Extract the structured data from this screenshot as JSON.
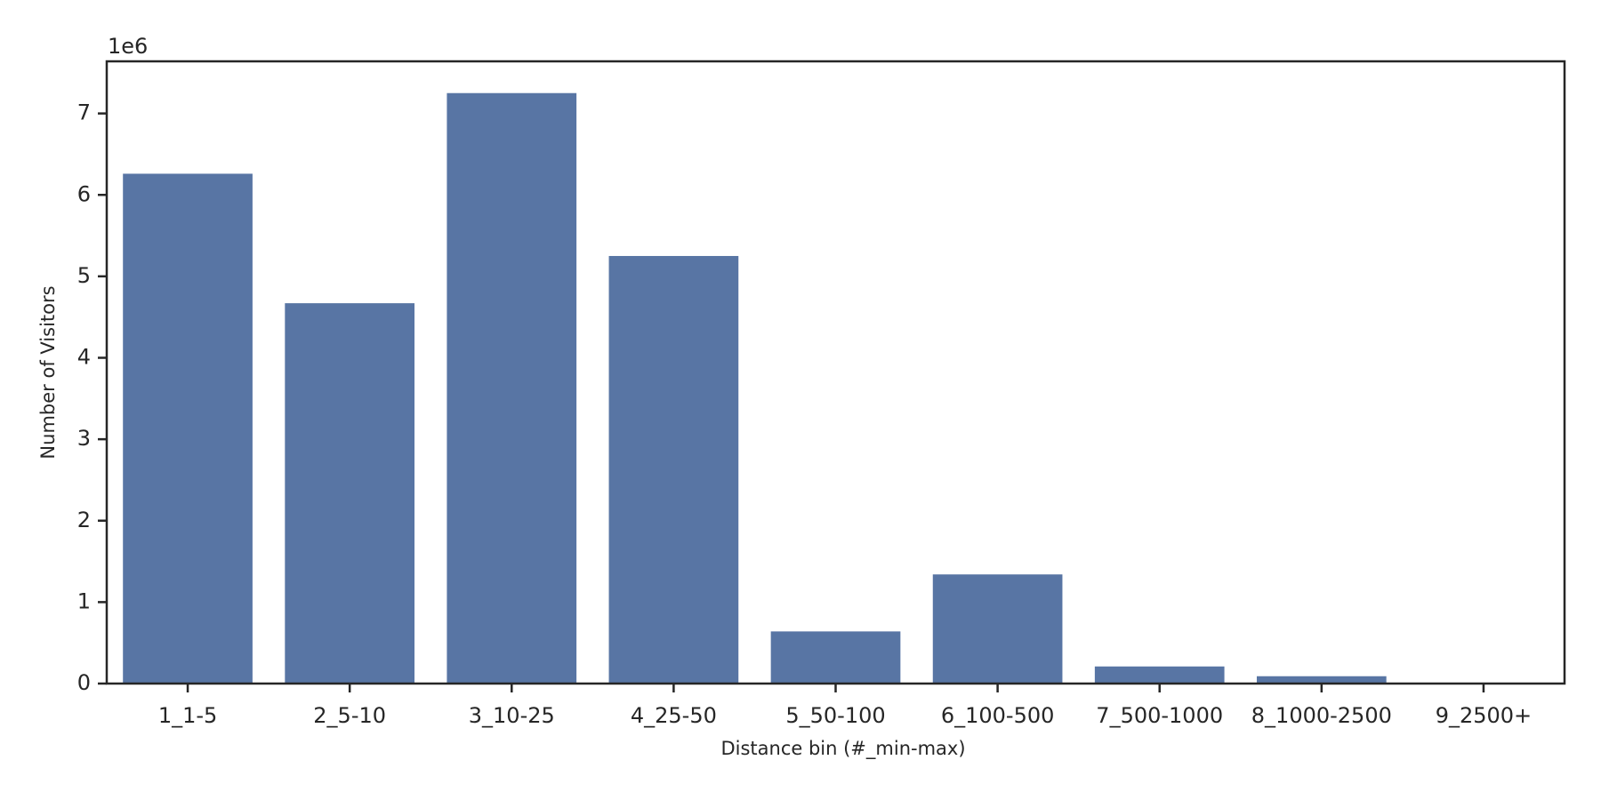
{
  "chart_data": {
    "type": "bar",
    "x_label": "Distance bin (#_min-max)",
    "y_label": "Number of Visitors",
    "y_offset_label": "1e6",
    "categories": [
      "1_1-5",
      "2_5-10",
      "3_10-25",
      "4_25-50",
      "5_50-100",
      "6_100-500",
      "7_500-1000",
      "8_1000-2500",
      "9_2500+"
    ],
    "values": [
      6.26,
      4.67,
      7.25,
      5.25,
      0.64,
      1.34,
      0.21,
      0.09,
      0.01
    ],
    "color": "#5875a4",
    "ylim": [
      0,
      7.64
    ],
    "yticks": [
      0,
      1,
      2,
      3,
      4,
      5,
      6,
      7
    ]
  }
}
